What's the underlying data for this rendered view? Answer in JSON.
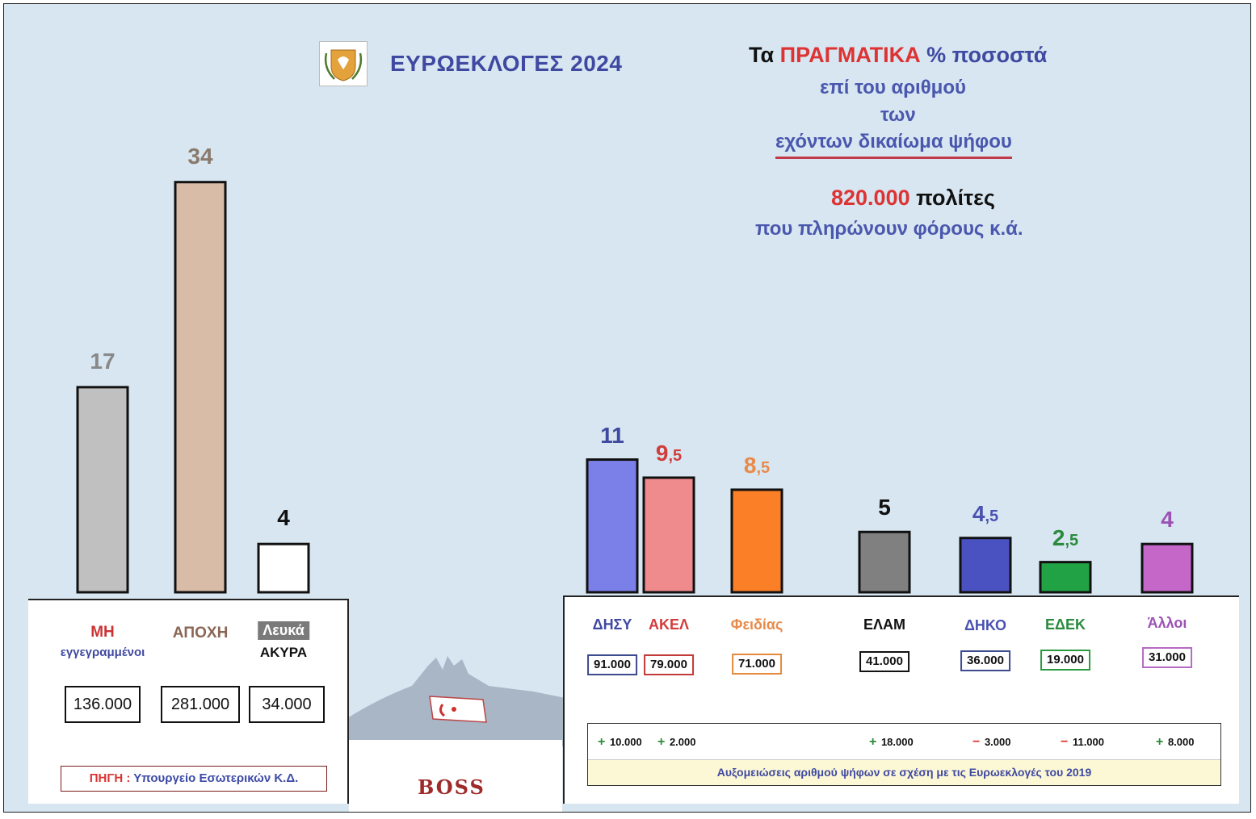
{
  "header": {
    "title": "ΕΥΡΩΕΚΛΟΓΕΣ  2024",
    "line1_a": "Τα ",
    "line1_red": "ΠΡΑΓΜΑΤΙΚΑ",
    "line1_b": "  %  ποσοστά",
    "line2": "επί του αριθμού",
    "line3": "των",
    "line4": "εχόντων δικαίωμα ψήφου",
    "citizens_num": "820.000",
    "citizens_word": "  πολίτες",
    "line6": "που πληρώνουν φόρους κ.ά."
  },
  "source": {
    "label": "ΠΗΓΗ : ",
    "text": "Υπουργείο Εσωτερικών Κ.Δ."
  },
  "note": "Αυξομειώσεις αριθμού ψήφων σε σχέση με τις Ευρωεκλογές του 2019",
  "signature": "BOSS",
  "left_values": [
    "136.000",
    "281.000",
    "34.000"
  ],
  "chart_data": [
    {
      "type": "bar",
      "categories": [
        "ΜΗ εγγεγραμμένοι",
        "ΑΠΟΧΗ",
        "Λευκά ΑΚΥΡΑ"
      ],
      "category_lines": [
        [
          "ΜΗ",
          "εγγεγραμμένοι"
        ],
        [
          "ΑΠΟΧΗ"
        ],
        [
          "Λευκά",
          "ΑΚΥΡΑ"
        ]
      ],
      "values": [
        17,
        34,
        4
      ],
      "value_labels": [
        "17",
        "34",
        "4"
      ],
      "colors": [
        "#c0c0c0",
        "#d9bca8",
        "#ffffff"
      ],
      "label_colors": [
        "#888888",
        "#8a7a6e",
        "#111111"
      ],
      "category_colors": [
        "#cc3333",
        "#8a6656",
        "#111111"
      ]
    },
    {
      "type": "bar",
      "categories": [
        "ΔΗΣΥ",
        "ΑΚΕΛ",
        "Φειδίας",
        "ΕΛΑΜ",
        "ΔΗΚΟ",
        "ΕΔΕΚ",
        "Άλλοι"
      ],
      "values": [
        11,
        9.5,
        8.5,
        5,
        4.5,
        2.5,
        4
      ],
      "value_main": [
        "11",
        "9",
        "8",
        "5",
        "4",
        "2",
        "4"
      ],
      "value_dec": [
        "",
        ",5",
        ",5",
        "",
        ",5",
        ",5",
        ""
      ],
      "colors": [
        "#7b7fe8",
        "#ef8a8d",
        "#fb7f26",
        "#808080",
        "#4a52c1",
        "#21a244",
        "#c566c9"
      ],
      "label_colors": [
        "#3f49a1",
        "#d33b3b",
        "#e88a4a",
        "#111111",
        "#4a52b1",
        "#2a8a3e",
        "#9b52b3"
      ],
      "votes": [
        "91.000",
        "79.000",
        "71.000",
        "41.000",
        "36.000",
        "19.000",
        "31.000"
      ],
      "vote_border_colors": [
        "#3c4a8e",
        "#c23a3a",
        "#e58a3c",
        "#111111",
        "#3c4a8e",
        "#2a9a3e",
        "#b56bc4"
      ],
      "changes": [
        {
          "sign": "+",
          "value": "10.000"
        },
        {
          "sign": "+",
          "value": "2.000"
        },
        {
          "sign": "",
          "value": ""
        },
        {
          "sign": "+",
          "value": "18.000"
        },
        {
          "sign": "−",
          "value": "3.000"
        },
        {
          "sign": "−",
          "value": "11.000"
        },
        {
          "sign": "+",
          "value": "8.000"
        }
      ]
    }
  ]
}
